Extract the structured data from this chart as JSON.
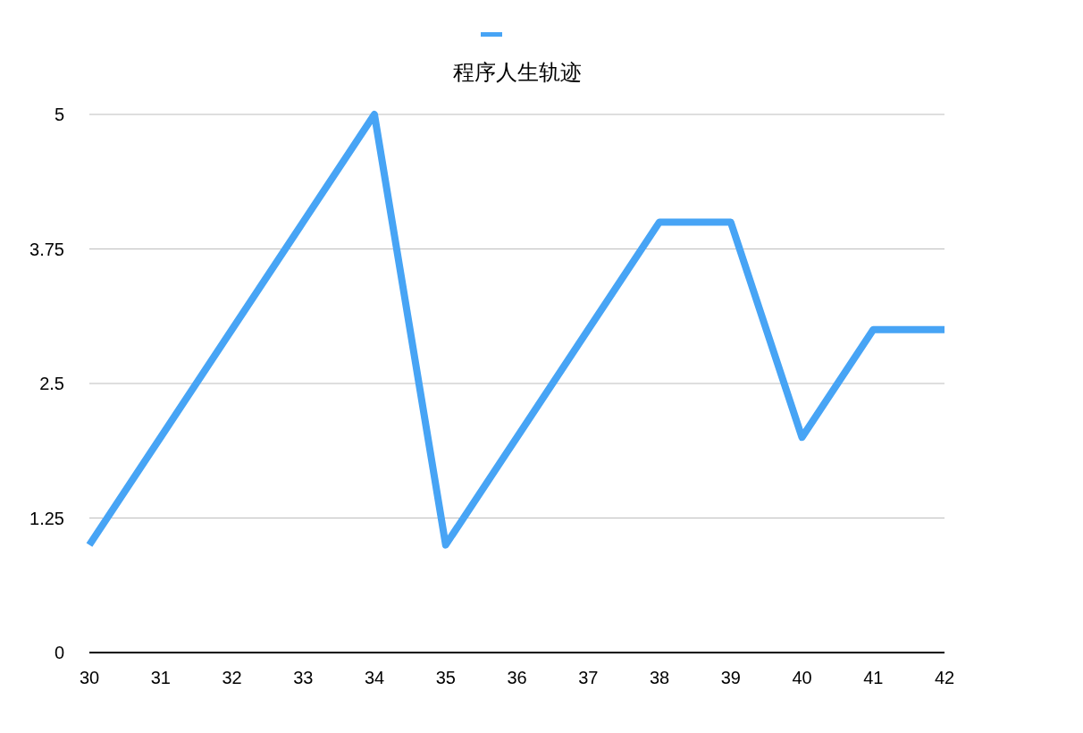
{
  "chart_data": {
    "type": "line",
    "title": "程序人生轨迹",
    "x": [
      30,
      31,
      32,
      33,
      34,
      35,
      36,
      37,
      38,
      39,
      40,
      41,
      42
    ],
    "series": [
      {
        "color": "#47a4f5",
        "values": [
          1,
          2,
          3,
          4,
          5,
          1,
          2,
          3,
          4,
          4,
          2,
          3,
          3
        ]
      }
    ],
    "xlim": [
      30,
      42
    ],
    "xticks": [
      30,
      31,
      32,
      33,
      34,
      35,
      36,
      37,
      38,
      39,
      40,
      41,
      42
    ],
    "ylim": [
      0,
      5
    ],
    "yticks": [
      0,
      1.25,
      2.5,
      3.75,
      5
    ],
    "grid": "y",
    "marker": "none",
    "line_style": "solid"
  }
}
